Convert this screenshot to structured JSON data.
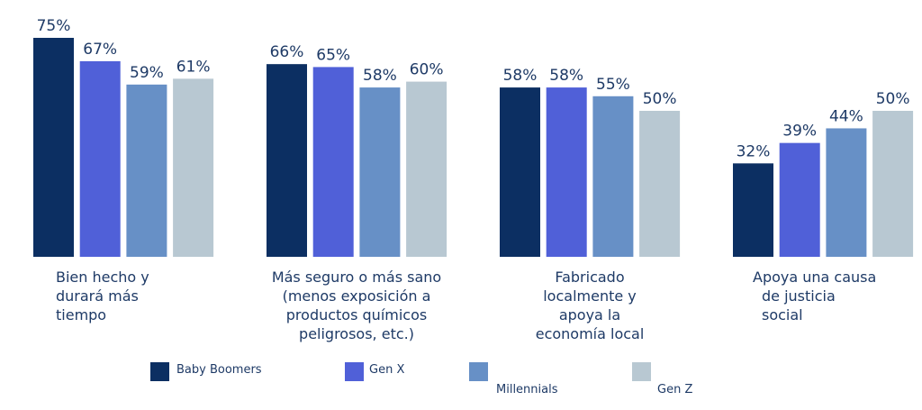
{
  "chart_data": {
    "type": "bar",
    "title": "",
    "xlabel": "",
    "ylabel": "",
    "ylim": [
      0,
      80
    ],
    "grid": false,
    "legend_position": "bottom",
    "value_suffix": "%",
    "categories": [
      [
        "Bien hecho y",
        "durará más",
        "tiempo"
      ],
      [
        "Más seguro o más sano",
        "(menos exposición a",
        "productos químicos",
        "peligrosos, etc.)"
      ],
      [
        "Fabricado",
        "localmente y",
        "apoya la",
        "economía local"
      ],
      [
        "Apoya una causa",
        "de justicia",
        "social"
      ]
    ],
    "series": [
      {
        "name": "Baby Boomers",
        "color": "#0c2f62",
        "values": [
          75,
          66,
          58,
          32
        ]
      },
      {
        "name": "Gen X",
        "color": "#5060d8",
        "values": [
          67,
          65,
          58,
          39
        ]
      },
      {
        "name": "Millennials",
        "color": "#6790c6",
        "values": [
          59,
          58,
          55,
          44
        ]
      },
      {
        "name": "Gen Z",
        "color": "#b8c8d2",
        "values": [
          61,
          60,
          50,
          50
        ]
      }
    ]
  }
}
